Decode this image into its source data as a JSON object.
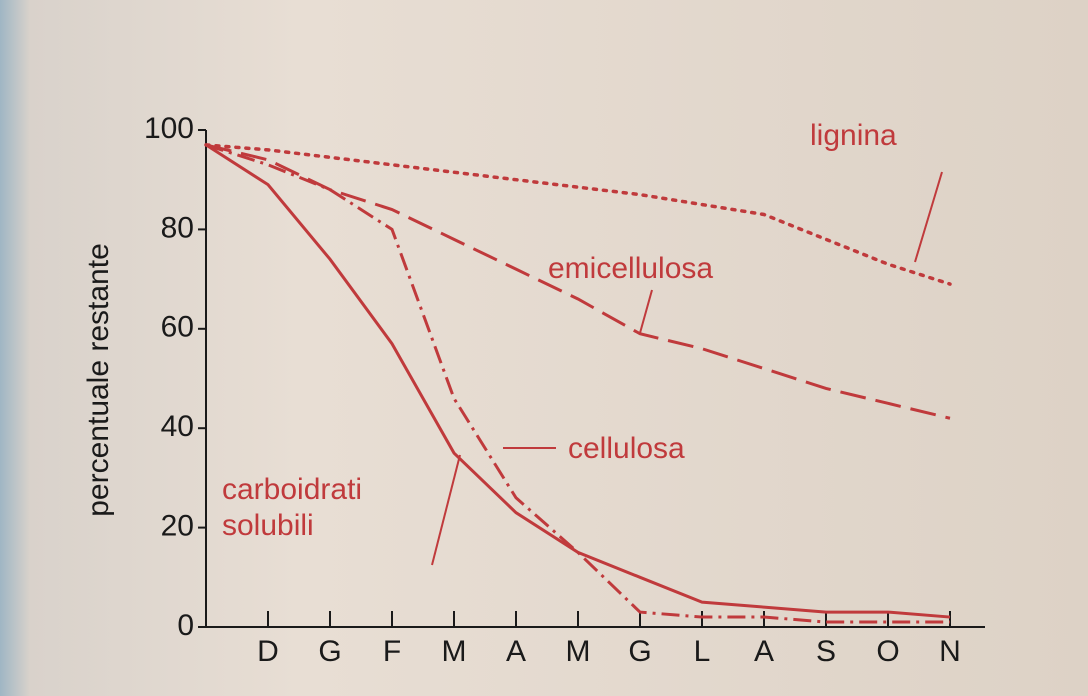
{
  "chart_data": {
    "type": "line",
    "y_label": "percentuale restante",
    "categories": [
      null,
      "D",
      "G",
      "F",
      "M",
      "A",
      "M",
      "G",
      "L",
      "A",
      "S",
      "O",
      "N"
    ],
    "ylim": [
      0,
      100
    ],
    "yticks": [
      0,
      20,
      40,
      60,
      80,
      100
    ],
    "series": [
      {
        "name": "carboidrati solubili",
        "color": "#c03a3c",
        "style": "solid",
        "values": [
          97,
          89,
          74,
          57,
          35,
          23,
          15,
          10,
          5,
          4,
          3,
          3,
          2
        ]
      },
      {
        "name": "cellulosa",
        "color": "#c03a3c",
        "style": "dashdot",
        "values": [
          97,
          93,
          88,
          80,
          46,
          26,
          15,
          3,
          2,
          2,
          1,
          1,
          1
        ]
      },
      {
        "name": "emicellulosa",
        "color": "#c03a3c",
        "style": "dashed",
        "values": [
          97,
          94,
          88,
          84,
          78,
          72,
          66,
          59,
          56,
          52,
          48,
          45,
          42
        ]
      },
      {
        "name": "lignina",
        "color": "#c03a3c",
        "style": "dotted",
        "values": [
          97,
          96,
          94.5,
          93,
          91.5,
          90,
          88.5,
          87,
          85,
          83,
          78,
          73,
          69
        ]
      }
    ]
  }
}
